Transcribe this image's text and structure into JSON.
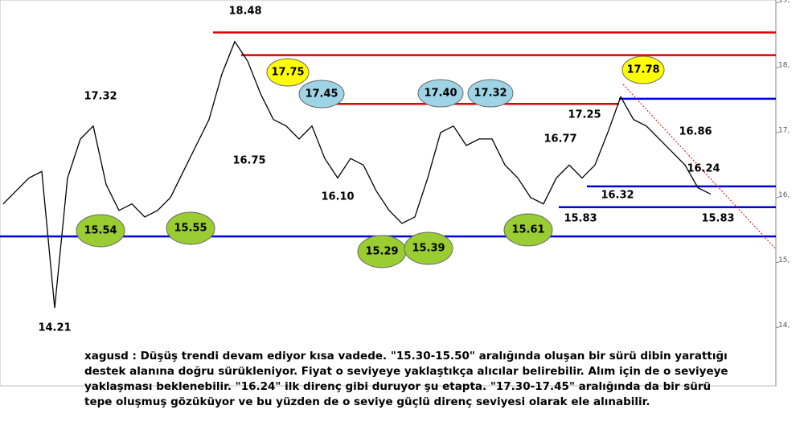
{
  "chart_data": {
    "type": "line",
    "color": "#000000",
    "values": [
      15.9,
      16.1,
      16.3,
      16.4,
      14.3,
      16.3,
      16.9,
      17.1,
      16.2,
      15.8,
      15.9,
      15.7,
      15.8,
      16.0,
      16.4,
      16.8,
      17.2,
      17.9,
      18.4,
      18.1,
      17.6,
      17.2,
      17.1,
      16.9,
      17.1,
      16.6,
      16.3,
      16.6,
      16.5,
      16.1,
      15.8,
      15.6,
      15.7,
      16.3,
      17.0,
      17.1,
      16.8,
      16.9,
      16.9,
      16.5,
      16.3,
      16.0,
      15.9,
      16.3,
      16.5,
      16.3,
      16.5,
      17.0,
      17.55,
      17.2,
      17.1,
      16.9,
      16.7,
      16.5,
      16.15,
      16.05
    ],
    "ylim": [
      13.1,
      19.04
    ],
    "yticks": [
      {
        "value": 14,
        "label": "14,"
      },
      {
        "value": 15,
        "label": "15,"
      },
      {
        "value": 16,
        "label": "16,"
      },
      {
        "value": 17,
        "label": "17,"
      },
      {
        "value": 18,
        "label": "18,"
      },
      {
        "value": 19,
        "label": "19,"
      }
    ],
    "levels": [
      {
        "value": 18.54,
        "color": "#e00000"
      },
      {
        "value": 18.19,
        "color": "#e00000"
      },
      {
        "value": 17.44,
        "color": "#e00000"
      },
      {
        "value": 17.52,
        "color": "#0000e0"
      },
      {
        "value": 16.17,
        "color": "#0000e0"
      },
      {
        "value": 15.85,
        "color": "#0000e0"
      },
      {
        "value": 15.4,
        "color": "#0000e0"
      }
    ],
    "annotations": [
      {
        "text": "18.48",
        "style": "plain"
      },
      {
        "text": "17.32",
        "style": "plain"
      },
      {
        "text": "17.75",
        "style": "yellow"
      },
      {
        "text": "17.45",
        "style": "blue"
      },
      {
        "text": "16.75",
        "style": "plain"
      },
      {
        "text": "16.10",
        "style": "plain"
      },
      {
        "text": "15.54",
        "style": "green"
      },
      {
        "text": "15.55",
        "style": "green"
      },
      {
        "text": "15.29",
        "style": "green"
      },
      {
        "text": "15.39",
        "style": "green"
      },
      {
        "text": "17.40",
        "style": "blue"
      },
      {
        "text": "17.32",
        "style": "blue"
      },
      {
        "text": "15.61",
        "style": "green"
      },
      {
        "text": "16.77",
        "style": "plain"
      },
      {
        "text": "17.25",
        "style": "plain"
      },
      {
        "text": "17.78",
        "style": "yellow"
      },
      {
        "text": "16.86",
        "style": "plain"
      },
      {
        "text": "16.24",
        "style": "plain"
      },
      {
        "text": "16.32",
        "style": "plain"
      },
      {
        "text": "15.83",
        "style": "plain"
      },
      {
        "text": "15.83",
        "style": "plain"
      },
      {
        "text": "14.21",
        "style": "plain"
      }
    ],
    "commentary": [
      "xagusd : Düşüş trendi devam ediyor kısa vadede. \"15.30-15.50\" aralığında oluşan bir sürü dibin yarattığı",
      "destek alanına doğru sürükleniyor. Fiyat o seviyeye yaklaştıkça alıcılar belirebilir. Alım için de o seviyeye",
      "yaklaşması beklenebilir. \"16.24\" ilk direnç gibi duruyor şu etapta. \"17.30-17.45\" aralığında da bir sürü",
      "tepe oluşmuş gözüküyor ve bu yüzden de o seviye güçlü direnç seviyesi olarak ele alınabilir."
    ]
  }
}
